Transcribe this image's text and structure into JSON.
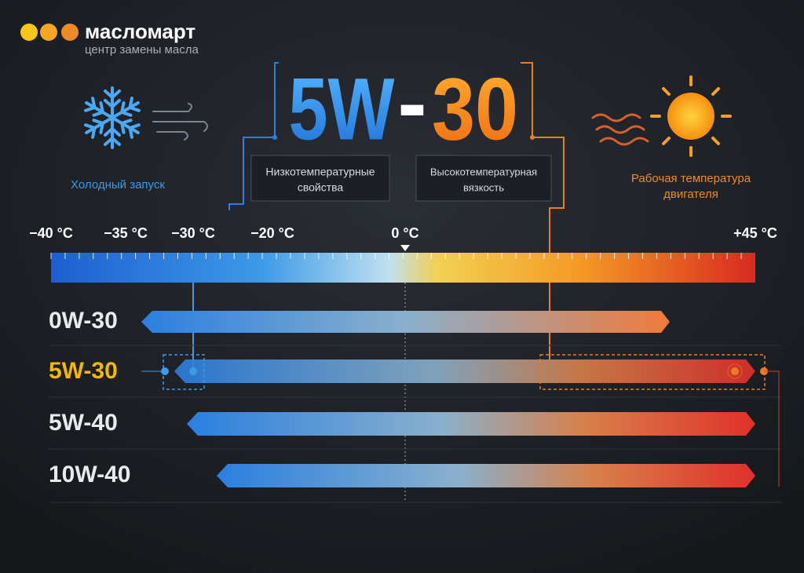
{
  "brand": {
    "name": "масломарт",
    "tagline": "центр замены масла"
  },
  "title": {
    "left": "5W",
    "dash": "-",
    "right": "30"
  },
  "cold": {
    "label": "Холодный запуск"
  },
  "hot": {
    "label_lines": [
      "Рабочая температура",
      "двигателя"
    ]
  },
  "boxes": {
    "low": [
      "Низкотемпературные",
      "свойства"
    ],
    "high": [
      "Высокотемпературная",
      "вязкость"
    ]
  },
  "scale": {
    "ticks": [
      "−40 °C",
      "−35 °C",
      "−30 °C",
      "−20 °C",
      "0 °C",
      "+45 °C"
    ]
  },
  "grades": [
    "0W-30",
    "5W-30",
    "5W-40",
    "10W-40"
  ]
}
